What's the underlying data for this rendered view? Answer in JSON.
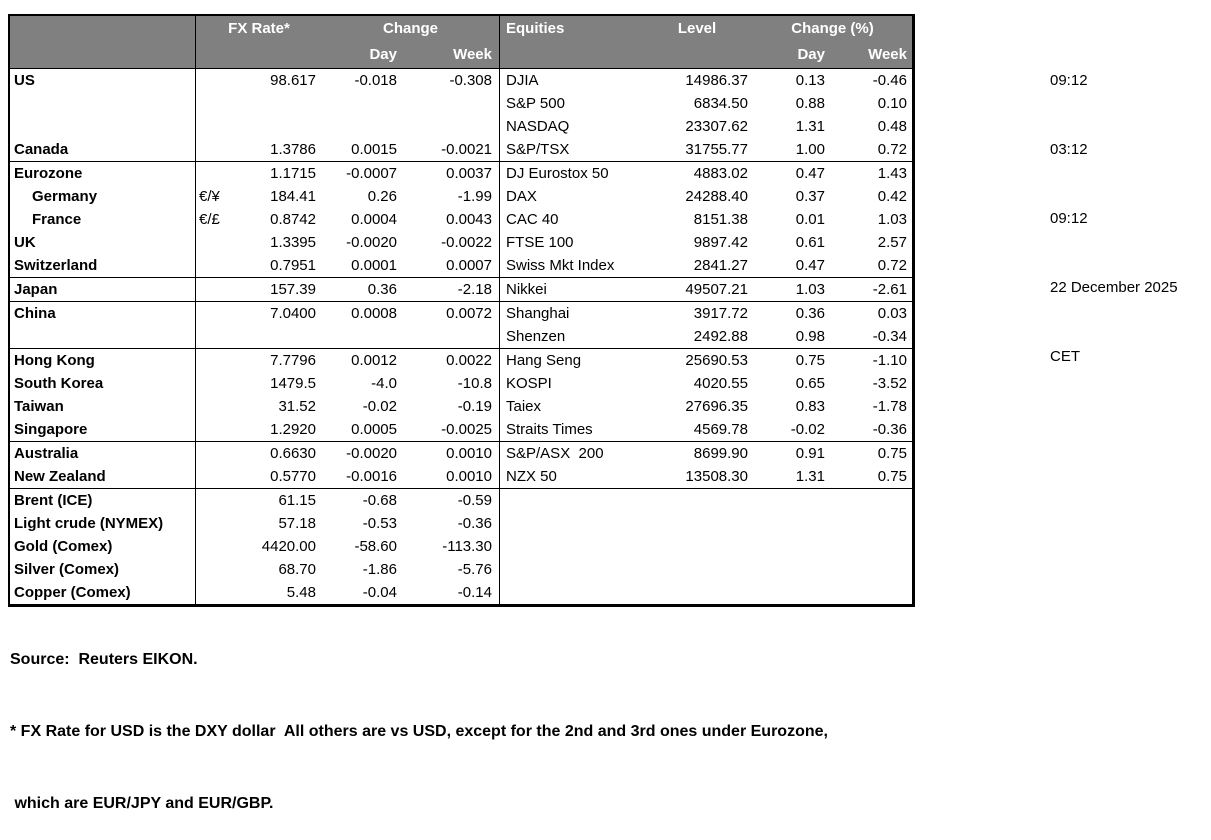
{
  "colors": {
    "header_bg": "#808080",
    "header_text": "#ffffff",
    "border": "#000000",
    "page_bg": "#ffffff"
  },
  "timestamps": [
    "09:12",
    "03:12",
    "09:12",
    "22 December 2025",
    "CET"
  ],
  "fx_table": {
    "header": {
      "fx_rate": "FX Rate*",
      "change": "Change",
      "day": "Day",
      "week": "Week"
    }
  },
  "equities_table": {
    "header": {
      "equities": "Equities",
      "level": "Level",
      "change_pct": "Change (%)",
      "day": "Day",
      "week": "Week"
    }
  },
  "groups": [
    {
      "fx": [
        {
          "label": "US",
          "sym": "",
          "rate": "98.617",
          "day": "-0.018",
          "week": "-0.308",
          "indent": false
        },
        {
          "label": "",
          "sym": "",
          "rate": "",
          "day": "",
          "week": "",
          "indent": false
        },
        {
          "label": "",
          "sym": "",
          "rate": "",
          "day": "",
          "week": "",
          "indent": false
        },
        {
          "label": "Canada",
          "sym": "",
          "rate": "1.3786",
          "day": "0.0015",
          "week": "-0.0021",
          "indent": false
        }
      ],
      "eq": [
        {
          "name": "DJIA",
          "level": "14986.37",
          "day": "0.13",
          "week": "-0.46"
        },
        {
          "name": "S&P 500",
          "level": "6834.50",
          "day": "0.88",
          "week": "0.10"
        },
        {
          "name": "NASDAQ",
          "level": "23307.62",
          "day": "1.31",
          "week": "0.48"
        },
        {
          "name": "S&P/TSX",
          "level": "31755.77",
          "day": "1.00",
          "week": "0.72"
        }
      ]
    },
    {
      "fx": [
        {
          "label": "Eurozone",
          "sym": "",
          "rate": "1.1715",
          "day": "-0.0007",
          "week": "0.0037",
          "indent": false
        },
        {
          "label": "Germany",
          "sym": "€/¥",
          "rate": "184.41",
          "day": "0.26",
          "week": "-1.99",
          "indent": true
        },
        {
          "label": "France",
          "sym": "€/£",
          "rate": "0.8742",
          "day": "0.0004",
          "week": "0.0043",
          "indent": true
        },
        {
          "label": "UK",
          "sym": "",
          "rate": "1.3395",
          "day": "-0.0020",
          "week": "-0.0022",
          "indent": false
        },
        {
          "label": "Switzerland",
          "sym": "",
          "rate": "0.7951",
          "day": "0.0001",
          "week": "0.0007",
          "indent": false
        }
      ],
      "eq": [
        {
          "name": "DJ Eurostox 50",
          "level": "4883.02",
          "day": "0.47",
          "week": "1.43"
        },
        {
          "name": "DAX",
          "level": "24288.40",
          "day": "0.37",
          "week": "0.42"
        },
        {
          "name": "CAC 40",
          "level": "8151.38",
          "day": "0.01",
          "week": "1.03"
        },
        {
          "name": "FTSE 100",
          "level": "9897.42",
          "day": "0.61",
          "week": "2.57"
        },
        {
          "name": "Swiss Mkt Index",
          "level": "2841.27",
          "day": "0.47",
          "week": "0.72"
        }
      ]
    },
    {
      "fx": [
        {
          "label": "Japan",
          "sym": "",
          "rate": "157.39",
          "day": "0.36",
          "week": "-2.18",
          "indent": false
        }
      ],
      "eq": [
        {
          "name": "Nikkei",
          "level": "49507.21",
          "day": "1.03",
          "week": "-2.61"
        }
      ]
    },
    {
      "fx": [
        {
          "label": "China",
          "sym": "",
          "rate": "7.0400",
          "day": "0.0008",
          "week": "0.0072",
          "indent": false
        },
        {
          "label": "",
          "sym": "",
          "rate": "",
          "day": "",
          "week": "",
          "indent": false
        }
      ],
      "eq": [
        {
          "name": "Shanghai",
          "level": "3917.72",
          "day": "0.36",
          "week": "0.03"
        },
        {
          "name": "Shenzen",
          "level": "2492.88",
          "day": "0.98",
          "week": "-0.34"
        }
      ]
    },
    {
      "fx": [
        {
          "label": "Hong Kong",
          "sym": "",
          "rate": "7.7796",
          "day": "0.0012",
          "week": "0.0022",
          "indent": false
        },
        {
          "label": "South Korea",
          "sym": "",
          "rate": "1479.5",
          "day": "-4.0",
          "week": "-10.8",
          "indent": false
        },
        {
          "label": "Taiwan",
          "sym": "",
          "rate": "31.52",
          "day": "-0.02",
          "week": "-0.19",
          "indent": false
        },
        {
          "label": "Singapore",
          "sym": "",
          "rate": "1.2920",
          "day": "0.0005",
          "week": "-0.0025",
          "indent": false
        }
      ],
      "eq": [
        {
          "name": "Hang Seng",
          "level": "25690.53",
          "day": "0.75",
          "week": "-1.10"
        },
        {
          "name": "KOSPI",
          "level": "4020.55",
          "day": "0.65",
          "week": "-3.52"
        },
        {
          "name": "Taiex",
          "level": "27696.35",
          "day": "0.83",
          "week": "-1.78"
        },
        {
          "name": "Straits Times",
          "level": "4569.78",
          "day": "-0.02",
          "week": "-0.36"
        }
      ]
    },
    {
      "fx": [
        {
          "label": "Australia",
          "sym": "",
          "rate": "0.6630",
          "day": "-0.0020",
          "week": "0.0010",
          "indent": false
        },
        {
          "label": "New Zealand",
          "sym": "",
          "rate": "0.5770",
          "day": "-0.0016",
          "week": "0.0010",
          "indent": false
        }
      ],
      "eq": [
        {
          "name": "S&P/ASX  200",
          "level": "8699.90",
          "day": "0.91",
          "week": "0.75"
        },
        {
          "name": "NZX 50",
          "level": "13508.30",
          "day": "1.31",
          "week": "0.75"
        }
      ]
    },
    {
      "fx": [
        {
          "label": "Brent (ICE)",
          "sym": "",
          "rate": "61.15",
          "day": "-0.68",
          "week": "-0.59",
          "indent": false
        },
        {
          "label": "Light crude (NYMEX)",
          "sym": "",
          "rate": "57.18",
          "day": "-0.53",
          "week": "-0.36",
          "indent": false
        },
        {
          "label": "Gold (Comex)",
          "sym": "",
          "rate": "4420.00",
          "day": "-58.60",
          "week": "-113.30",
          "indent": false
        },
        {
          "label": "Silver (Comex)",
          "sym": "",
          "rate": "68.70",
          "day": "-1.86",
          "week": "-5.76",
          "indent": false
        },
        {
          "label": "Copper (Comex)",
          "sym": "",
          "rate": "5.48",
          "day": "-0.04",
          "week": "-0.14",
          "indent": false
        }
      ],
      "eq": []
    }
  ],
  "footer": {
    "source": "Source:  Reuters EIKON.",
    "note_line1": "* FX Rate for USD is the DXY dollar  All others are vs USD, except for the 2nd and 3rd ones under Eurozone,",
    "note_line2": " which are EUR/JPY and EUR/GBP."
  }
}
